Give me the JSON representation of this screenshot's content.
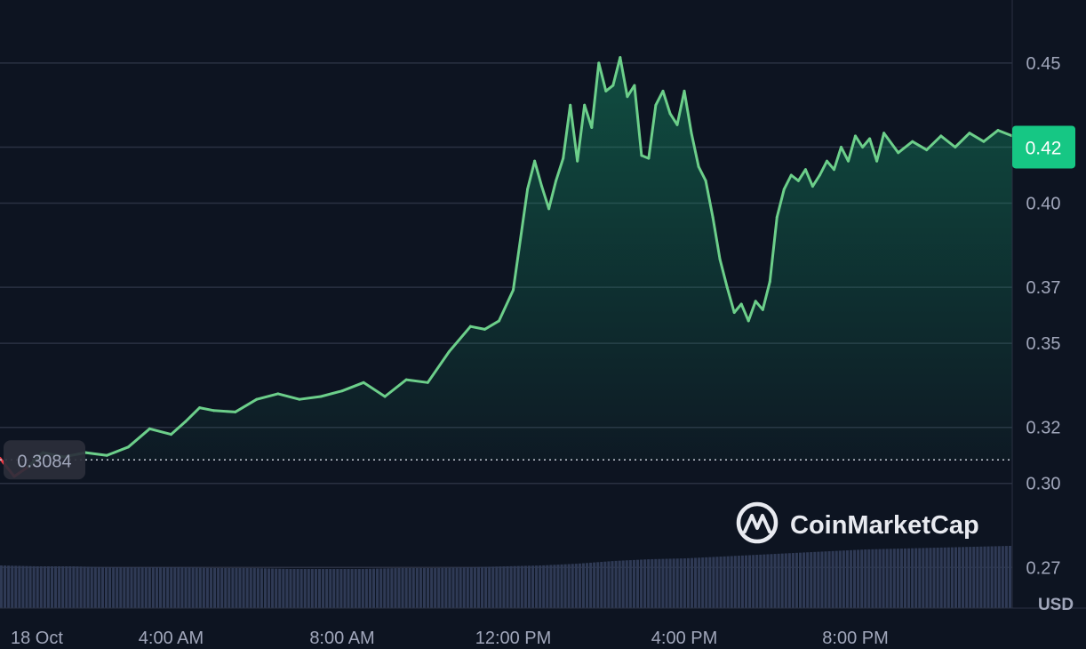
{
  "chart_data": {
    "type": "line",
    "series": [
      {
        "x": [
          "00:00",
          "00:20",
          "00:40",
          "01:00",
          "01:30",
          "02:00",
          "02:30",
          "03:00",
          "03:30",
          "04:00",
          "04:20",
          "04:40",
          "05:00",
          "05:30",
          "06:00",
          "06:30",
          "07:00",
          "07:30",
          "08:00",
          "08:30",
          "09:00",
          "09:30",
          "10:00",
          "10:30",
          "11:00",
          "11:20",
          "11:40",
          "12:00",
          "12:20",
          "12:30",
          "12:40",
          "12:50",
          "13:00",
          "13:10",
          "13:20",
          "13:30",
          "13:40",
          "13:50",
          "14:00",
          "14:10",
          "14:20",
          "14:30",
          "14:40",
          "14:50",
          "15:00",
          "15:10",
          "15:20",
          "15:30",
          "15:40",
          "15:50",
          "16:00",
          "16:10",
          "16:20",
          "16:30",
          "16:40",
          "16:50",
          "17:00",
          "17:10",
          "17:20",
          "17:30",
          "17:40",
          "17:50",
          "18:00",
          "18:10",
          "18:20",
          "18:30",
          "18:40",
          "18:50",
          "19:00",
          "19:10",
          "19:20",
          "19:30",
          "19:40",
          "19:50",
          "20:00",
          "20:10",
          "20:20",
          "20:30",
          "20:40",
          "21:00",
          "21:20",
          "21:40",
          "22:00",
          "22:20",
          "22:40",
          "23:00",
          "23:20",
          "23:40"
        ],
        "values": [
          0.309,
          0.3025,
          0.306,
          0.311,
          0.3095,
          0.311,
          0.31,
          0.313,
          0.3195,
          0.3175,
          0.322,
          0.327,
          0.326,
          0.3255,
          0.33,
          0.332,
          0.33,
          0.331,
          0.333,
          0.336,
          0.331,
          0.337,
          0.336,
          0.347,
          0.356,
          0.355,
          0.358,
          0.369,
          0.405,
          0.415,
          0.406,
          0.398,
          0.408,
          0.416,
          0.435,
          0.415,
          0.435,
          0.427,
          0.45,
          0.44,
          0.442,
          0.452,
          0.438,
          0.442,
          0.417,
          0.416,
          0.435,
          0.44,
          0.432,
          0.428,
          0.44,
          0.425,
          0.413,
          0.408,
          0.395,
          0.38,
          0.37,
          0.361,
          0.364,
          0.358,
          0.365,
          0.362,
          0.372,
          0.395,
          0.405,
          0.41,
          0.408,
          0.412,
          0.406,
          0.41,
          0.415,
          0.412,
          0.42,
          0.415,
          0.424,
          0.42,
          0.423,
          0.415,
          0.425,
          0.418,
          0.422,
          0.419,
          0.424,
          0.42,
          0.425,
          0.422,
          0.426,
          0.424
        ]
      }
    ],
    "baseline": 0.3084,
    "baseline_label": "0.3084",
    "last_price": 0.42,
    "last_price_label": "0.42",
    "x_tick_labels": [
      {
        "label": "18 Oct",
        "at": "00:00"
      },
      {
        "label": "4:00 AM",
        "at": "04:00"
      },
      {
        "label": "8:00 AM",
        "at": "08:00"
      },
      {
        "label": "12:00 PM",
        "at": "12:00"
      },
      {
        "label": "4:00 PM",
        "at": "16:00"
      },
      {
        "label": "8:00 PM",
        "at": "20:00"
      }
    ],
    "y_ticks": [
      0.27,
      0.3,
      0.32,
      0.35,
      0.37,
      0.4,
      0.42,
      0.45
    ],
    "y_tick_labels": [
      "0.27",
      "0.30",
      "0.32",
      "0.35",
      "0.37",
      "0.40",
      "0.42",
      "0.45"
    ],
    "ylim": [
      0.2555,
      0.4725
    ],
    "volume_relative": [
      0.48,
      0.47,
      0.47,
      0.46,
      0.46,
      0.46,
      0.45,
      0.45,
      0.44,
      0.44,
      0.44,
      0.45,
      0.45,
      0.46,
      0.47,
      0.48,
      0.5,
      0.53,
      0.55,
      0.56,
      0.58,
      0.6,
      0.62,
      0.64,
      0.66,
      0.67,
      0.68,
      0.69,
      0.7
    ],
    "watermark": "CoinMarketCap",
    "currency": "USD",
    "colors": {
      "up": "#6ccf8a",
      "down": "#ea3943",
      "badge": "#16c784",
      "grid": "#2a3142",
      "volume": "#2f3a55",
      "background": "#0d1421"
    }
  }
}
